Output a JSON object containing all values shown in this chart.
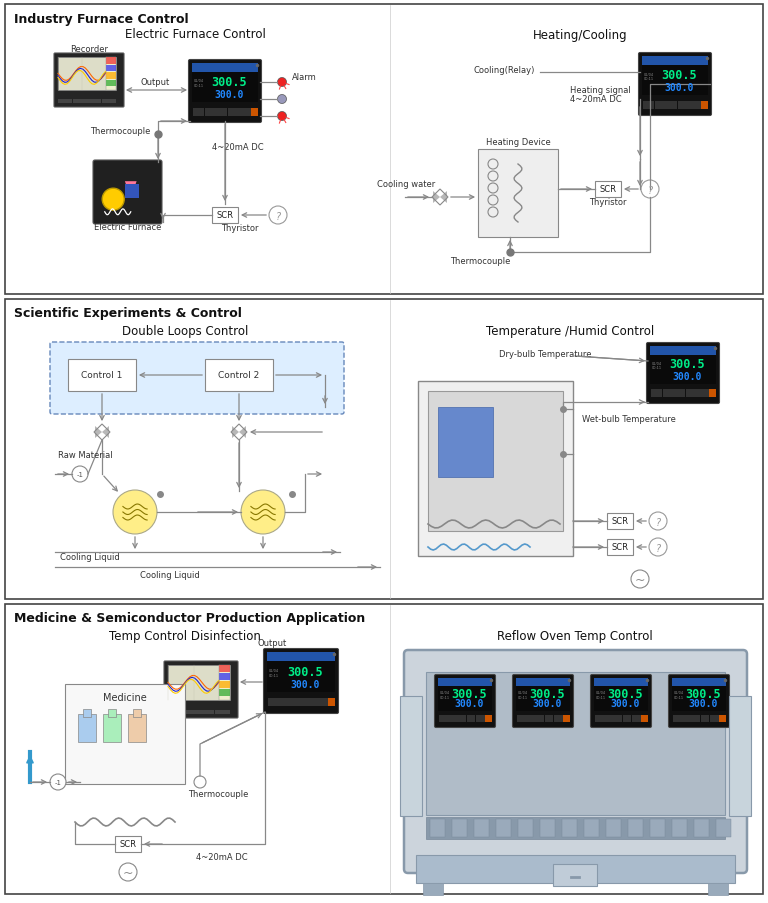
{
  "panel1_title": "Industry Furnace Control",
  "panel1_left_title": "Electric Furnace Control",
  "panel1_right_title": "Heating/Cooling",
  "panel2_title": "Scientific Experiments & Control",
  "panel2_left_title": "Double Loops Control",
  "panel2_right_title": "Temperature /Humid Control",
  "panel3_title": "Medicine & Semiconductor Production Application",
  "panel3_left_title": "Temp Control Disinfection",
  "panel3_right_title": "Reflow Oven Temp Control",
  "bg_color": "#ffffff",
  "panel_border_color": "#333333",
  "arrow_color": "#888888",
  "label_fontsize": 6,
  "title_fontsize": 9,
  "section_title_fontsize": 8.5
}
